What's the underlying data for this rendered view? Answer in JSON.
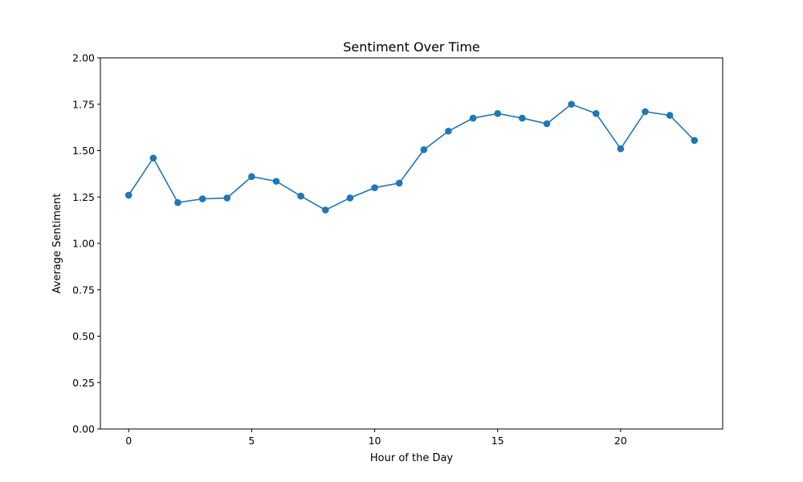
{
  "chart_data": {
    "type": "line",
    "title": "Sentiment Over Time",
    "xlabel": "Hour of the Day",
    "ylabel": "Average Sentiment",
    "xlim": [
      -1.15,
      24.15
    ],
    "ylim": [
      0,
      2.0
    ],
    "xticks": [
      0,
      5,
      10,
      15,
      20
    ],
    "yticks": [
      0.0,
      0.25,
      0.5,
      0.75,
      1.0,
      1.25,
      1.5,
      1.75,
      2.0
    ],
    "ytick_labels": [
      "0.00",
      "0.25",
      "0.50",
      "0.75",
      "1.00",
      "1.25",
      "1.50",
      "1.75",
      "2.00"
    ],
    "grid": false,
    "series": [
      {
        "color": "#1f77b4",
        "marker": "circle",
        "x": [
          0,
          1,
          2,
          3,
          4,
          5,
          6,
          7,
          8,
          9,
          10,
          11,
          12,
          13,
          14,
          15,
          16,
          17,
          18,
          19,
          20,
          21,
          22,
          23
        ],
        "y": [
          1.26,
          1.46,
          1.22,
          1.24,
          1.245,
          1.36,
          1.335,
          1.255,
          1.18,
          1.245,
          1.3,
          1.325,
          1.505,
          1.605,
          1.675,
          1.7,
          1.675,
          1.645,
          1.75,
          1.7,
          1.51,
          1.71,
          1.69,
          1.555
        ]
      }
    ]
  }
}
